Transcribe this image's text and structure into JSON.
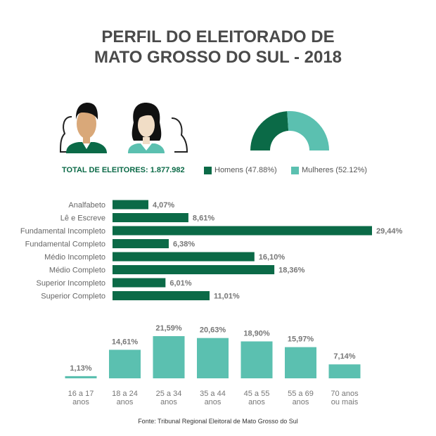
{
  "title_line1": "PERFIL DO ELEITORADO DE",
  "title_line2": "MATO GROSSO DO SUL - 2018",
  "total_label": "TOTAL DE ELEITORES: 1.877.982",
  "colors": {
    "dark_green": "#0b6a47",
    "teal": "#5bc0b0"
  },
  "icons": [
    "male-voter-icon",
    "female-voter-icon"
  ],
  "chart_data": [
    {
      "type": "pie",
      "categories": [
        "Homens (47.88%)",
        "Mulheres (52.12%)"
      ],
      "values": [
        47.88,
        52.12
      ],
      "colors": [
        "#0b6a47",
        "#5bc0b0"
      ],
      "style": "half-donut",
      "legend": "bottom"
    },
    {
      "type": "bar",
      "orientation": "horizontal",
      "categories": [
        "Analfabeto",
        "Lê e Escreve",
        "Fundamental Incompleto",
        "Fundamental Completo",
        "Médio Incompleto",
        "Médio Completo",
        "Superior Incompleto",
        "Superior Completo"
      ],
      "values": [
        4.07,
        8.61,
        29.44,
        6.38,
        16.1,
        18.36,
        6.01,
        11.01
      ],
      "labels": [
        "4,07%",
        "8,61%",
        "29,44%",
        "6,38%",
        "16,10%",
        "18,36%",
        "6,01%",
        "11,01%"
      ],
      "color": "#0b6a47"
    },
    {
      "type": "bar",
      "orientation": "vertical",
      "categories": [
        [
          "16 a 17",
          "anos"
        ],
        [
          "18 a 24",
          "anos"
        ],
        [
          "25 a 34",
          "anos"
        ],
        [
          "35 a 44",
          "anos"
        ],
        [
          "45 a 55",
          "anos"
        ],
        [
          "55 a 69",
          "anos"
        ],
        [
          "70 anos",
          "ou mais"
        ]
      ],
      "values": [
        1.13,
        14.61,
        21.59,
        20.63,
        18.9,
        15.97,
        7.14
      ],
      "labels": [
        "1,13%",
        "14,61%",
        "21,59%",
        "20,63%",
        "18,90%",
        "15,97%",
        "7,14%"
      ],
      "color": "#5bc0b0"
    }
  ],
  "source": "Fonte: Tribunal Regional Eleitoral de Mato Grosso do Sul"
}
